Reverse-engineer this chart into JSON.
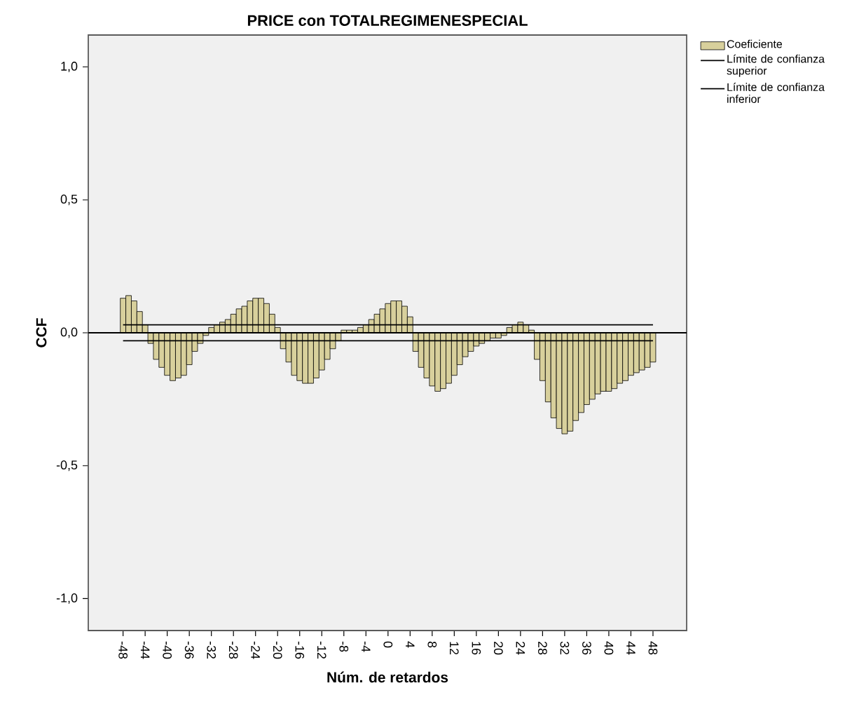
{
  "chart_data": {
    "type": "bar",
    "title": "PRICE con TOTALREGIMENESPECIAL",
    "xlabel": "Núm. de retardos",
    "ylabel": "CCF",
    "categories": [
      "-48",
      null,
      null,
      null,
      "-44",
      null,
      null,
      null,
      "-40",
      null,
      null,
      null,
      "-36",
      null,
      null,
      null,
      "-32",
      null,
      null,
      null,
      "-28",
      null,
      null,
      null,
      "-24",
      null,
      null,
      null,
      "-20",
      null,
      null,
      null,
      "-16",
      null,
      null,
      null,
      "-12",
      null,
      null,
      null,
      "-8",
      null,
      null,
      null,
      "-4",
      null,
      null,
      null,
      "0",
      null,
      null,
      null,
      "4",
      null,
      null,
      null,
      "8",
      null,
      null,
      null,
      "12",
      null,
      null,
      null,
      "16",
      null,
      null,
      null,
      "20",
      null,
      null,
      null,
      "24",
      null,
      null,
      null,
      "28",
      null,
      null,
      null,
      "32",
      null,
      null,
      null,
      "36",
      null,
      null,
      null,
      "40",
      null,
      null,
      null,
      "44",
      null,
      null,
      null,
      "48"
    ],
    "series": [
      {
        "name": "Coeficiente",
        "color": "#d8d09c",
        "values": [
          0.13,
          0.14,
          0.12,
          0.08,
          0.03,
          -0.04,
          -0.1,
          -0.13,
          -0.16,
          -0.18,
          -0.17,
          -0.16,
          -0.12,
          -0.07,
          -0.04,
          -0.01,
          0.02,
          0.03,
          0.04,
          0.05,
          0.07,
          0.09,
          0.1,
          0.12,
          0.13,
          0.13,
          0.11,
          0.07,
          0.02,
          -0.06,
          -0.11,
          -0.16,
          -0.18,
          -0.19,
          -0.19,
          -0.17,
          -0.14,
          -0.1,
          -0.06,
          -0.03,
          0.01,
          0.01,
          0.01,
          0.02,
          0.03,
          0.05,
          0.07,
          0.09,
          0.11,
          0.12,
          0.12,
          0.1,
          0.06,
          -0.07,
          -0.13,
          -0.17,
          -0.2,
          -0.22,
          -0.21,
          -0.19,
          -0.16,
          -0.12,
          -0.09,
          -0.07,
          -0.05,
          -0.04,
          -0.03,
          -0.02,
          -0.02,
          -0.01,
          0.02,
          0.03,
          0.04,
          0.03,
          0.01,
          -0.1,
          -0.18,
          -0.26,
          -0.32,
          -0.36,
          -0.38,
          -0.37,
          -0.33,
          -0.3,
          -0.27,
          -0.25,
          -0.23,
          -0.22,
          -0.22,
          -0.21,
          -0.19,
          -0.18,
          -0.16,
          -0.15,
          -0.14,
          -0.13,
          -0.11
        ]
      },
      {
        "type": "line",
        "name": "Límite de confianza superior",
        "color": "#000000",
        "values": [
          0.03,
          0.03,
          0.03,
          0.03,
          0.03,
          0.03,
          0.03,
          0.03,
          0.03,
          0.03,
          0.03,
          0.03,
          0.03,
          0.03,
          0.03,
          0.03,
          0.03,
          0.03,
          0.03,
          0.03,
          0.03,
          0.03,
          0.03,
          0.03,
          0.03,
          0.03,
          0.03,
          0.03,
          0.03,
          0.03,
          0.03,
          0.03,
          0.03,
          0.03,
          0.03,
          0.03,
          0.03,
          0.03,
          0.03,
          0.03,
          0.03,
          0.03,
          0.03,
          0.03,
          0.03,
          0.03,
          0.03,
          0.03,
          0.03,
          0.03,
          0.03,
          0.03,
          0.03,
          0.03,
          0.03,
          0.03,
          0.03,
          0.03,
          0.03,
          0.03,
          0.03,
          0.03,
          0.03,
          0.03,
          0.03,
          0.03,
          0.03,
          0.03,
          0.03,
          0.03,
          0.03,
          0.03,
          0.03,
          0.03,
          0.03,
          0.03,
          0.03,
          0.03,
          0.03,
          0.03,
          0.03,
          0.03,
          0.03,
          0.03,
          0.03,
          0.03,
          0.03,
          0.03,
          0.03,
          0.03,
          0.03,
          0.03,
          0.03,
          0.03,
          0.03,
          0.03,
          0.03
        ]
      },
      {
        "type": "line",
        "name": "Límite de confianza inferior",
        "color": "#000000",
        "values": [
          -0.03,
          -0.03,
          -0.03,
          -0.03,
          -0.03,
          -0.03,
          -0.03,
          -0.03,
          -0.03,
          -0.03,
          -0.03,
          -0.03,
          -0.03,
          -0.03,
          -0.03,
          -0.03,
          -0.03,
          -0.03,
          -0.03,
          -0.03,
          -0.03,
          -0.03,
          -0.03,
          -0.03,
          -0.03,
          -0.03,
          -0.03,
          -0.03,
          -0.03,
          -0.03,
          -0.03,
          -0.03,
          -0.03,
          -0.03,
          -0.03,
          -0.03,
          -0.03,
          -0.03,
          -0.03,
          -0.03,
          -0.03,
          -0.03,
          -0.03,
          -0.03,
          -0.03,
          -0.03,
          -0.03,
          -0.03,
          -0.03,
          -0.03,
          -0.03,
          -0.03,
          -0.03,
          -0.03,
          -0.03,
          -0.03,
          -0.03,
          -0.03,
          -0.03,
          -0.03,
          -0.03,
          -0.03,
          -0.03,
          -0.03,
          -0.03,
          -0.03,
          -0.03,
          -0.03,
          -0.03,
          -0.03,
          -0.03,
          -0.03,
          -0.03,
          -0.03,
          -0.03,
          -0.03,
          -0.03,
          -0.03,
          -0.03,
          -0.03,
          -0.03,
          -0.03,
          -0.03,
          -0.03,
          -0.03,
          -0.03,
          -0.03,
          -0.03,
          -0.03,
          -0.03,
          -0.03,
          -0.03,
          -0.03,
          -0.03,
          -0.03,
          -0.03,
          -0.03
        ]
      }
    ],
    "ylim": [
      -1.12,
      1.12
    ],
    "yticks": [
      {
        "value": -1,
        "label": "-1,0"
      },
      {
        "value": -0.5,
        "label": "-0,5"
      },
      {
        "value": 0,
        "label": "0,0"
      },
      {
        "value": 0.5,
        "label": "0,5"
      },
      {
        "value": 1,
        "label": "1,0"
      }
    ],
    "ref_lines": [
      {
        "axis": "y",
        "value": 0,
        "color": "#000000"
      }
    ],
    "legend": "right"
  }
}
